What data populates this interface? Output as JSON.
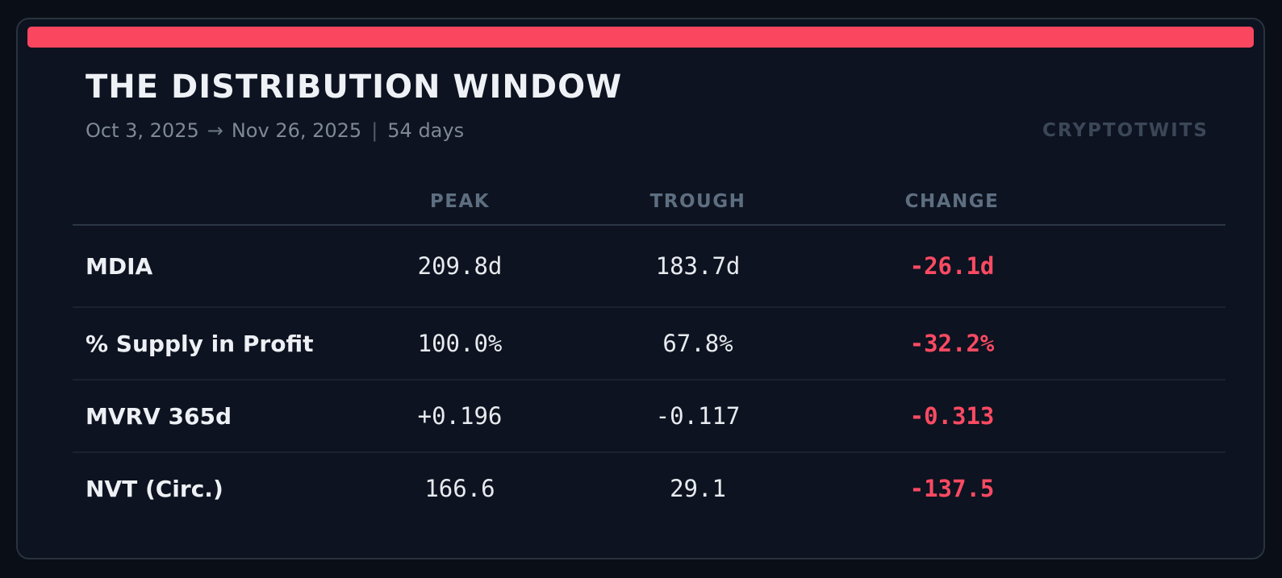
{
  "card": {
    "title": "THE DISTRIBUTION WINDOW",
    "date_start": "Oct 3, 2025",
    "arrow": "→",
    "date_end": "Nov 26, 2025",
    "separator": "|",
    "duration": "54 days",
    "watermark": "CRYPTOTWITS"
  },
  "chart_data": {
    "type": "table",
    "title": "THE DISTRIBUTION WINDOW",
    "subtitle": "Oct 3, 2025 → Nov 26, 2025 | 54 days",
    "window_days": 54,
    "columns": [
      "PEAK",
      "TROUGH",
      "CHANGE"
    ],
    "rows": [
      {
        "label": "MDIA",
        "peak": "209.8d",
        "trough": "183.7d",
        "change": "-26.1d"
      },
      {
        "label": "% Supply in Profit",
        "peak": "100.0%",
        "trough": "67.8%",
        "change": "-32.2%"
      },
      {
        "label": "MVRV 365d",
        "peak": "+0.196",
        "trough": "-0.117",
        "change": "-0.313"
      },
      {
        "label": "NVT (Circ.)",
        "peak": "166.6",
        "trough": "29.1",
        "change": "-137.5"
      }
    ]
  },
  "colors": {
    "accent": "#fb465f",
    "negative": "#fb4a63",
    "border-color": "#29333f"
  }
}
